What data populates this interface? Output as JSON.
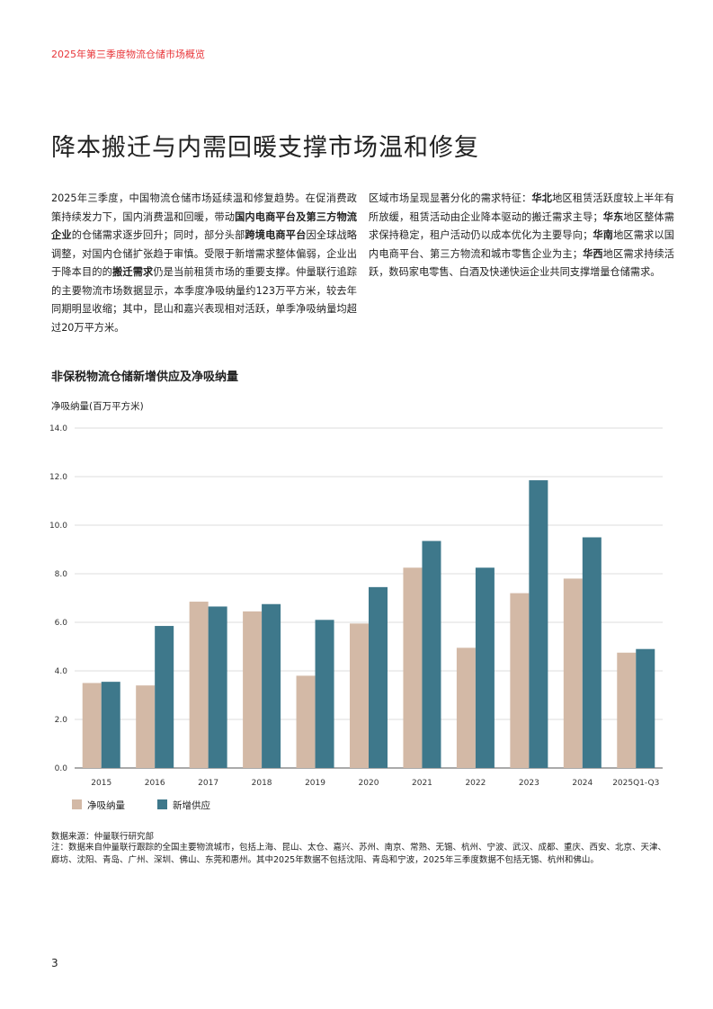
{
  "header": "2025年第三季度物流仓储市场概览",
  "title": "降本搬迁与内需回暖支撑市场温和修复",
  "col1": [
    {
      "t": "2025年三季度，中国物流仓储市场延续温和修复趋势。在促消费政策持续发力下，国内消费温和回暖，带动",
      "b": false
    },
    {
      "t": "国内电商平台及第三方物流企业",
      "b": true
    },
    {
      "t": "的仓储需求逐步回升；同时，部分头部",
      "b": false
    },
    {
      "t": "跨境电商平台",
      "b": true
    },
    {
      "t": "因全球战略调整，对国内仓储扩张趋于审慎。受限于新增需求整体偏弱，企业出于降本目的的",
      "b": false
    },
    {
      "t": "搬迁需求",
      "b": true
    },
    {
      "t": "仍是当前租赁市场的重要支撑。仲量联行追踪的主要物流市场数据显示，本季度净吸纳量约123万平方米，较去年同期明显收缩；其中，昆山和嘉兴表现相对活跃，单季净吸纳量均超过20万平方米。",
      "b": false
    }
  ],
  "col2": [
    {
      "t": "区域市场呈现显著分化的需求特征：",
      "b": false
    },
    {
      "t": "华北",
      "b": true
    },
    {
      "t": "地区租赁活跃度较上半年有所放缓，租赁活动由企业降本驱动的搬迁需求主导；",
      "b": false
    },
    {
      "t": "华东",
      "b": true
    },
    {
      "t": "地区整体需求保持稳定，租户活动仍以成本优化为主要导向；",
      "b": false
    },
    {
      "t": "华南",
      "b": true
    },
    {
      "t": "地区需求以国内电商平台、第三方物流和城市零售企业为主；",
      "b": false
    },
    {
      "t": "华西",
      "b": true
    },
    {
      "t": "地区需求持续活跃，数码家电零售、白酒及快递快运企业共同支撑增量仓储需求。",
      "b": false
    }
  ],
  "chart_data": {
    "type": "bar",
    "title": "非保税物流仓储新增供应及净吸纳量",
    "ylabel": "净吸纳量(百万平方米)",
    "ylim": [
      0,
      14
    ],
    "yticks": [
      "0.0",
      "2.0",
      "4.0",
      "6.0",
      "8.0",
      "10.0",
      "12.0",
      "14.0"
    ],
    "grid": true,
    "legend_position": "bottom-left",
    "categories": [
      "2015",
      "2016",
      "2017",
      "2018",
      "2019",
      "2020",
      "2021",
      "2022",
      "2023",
      "2024",
      "2025Q1-Q3"
    ],
    "series": [
      {
        "name": "净吸纳量",
        "color": "#d3b9a6",
        "values": [
          3.5,
          3.4,
          6.85,
          6.45,
          3.8,
          5.95,
          8.25,
          4.95,
          7.2,
          7.8,
          4.75
        ]
      },
      {
        "name": "新增供应",
        "color": "#3e788b",
        "values": [
          3.55,
          5.85,
          6.65,
          6.75,
          6.1,
          7.45,
          9.35,
          8.25,
          11.85,
          9.5,
          4.9
        ]
      }
    ]
  },
  "source": "数据来源：仲量联行研究部",
  "note": "注：数据来自仲量联行跟踪的全国主要物流城市，包括上海、昆山、太仓、嘉兴、苏州、南京、常熟、无锡、杭州、宁波、武汉、成都、重庆、西安、北京、天津、廊坊、沈阳、青岛、广州、深圳、佛山、东莞和惠州。其中2025年数据不包括沈阳、青岛和宁波，2025年三季度数据不包括无锡、杭州和佛山。",
  "page_number": "3"
}
